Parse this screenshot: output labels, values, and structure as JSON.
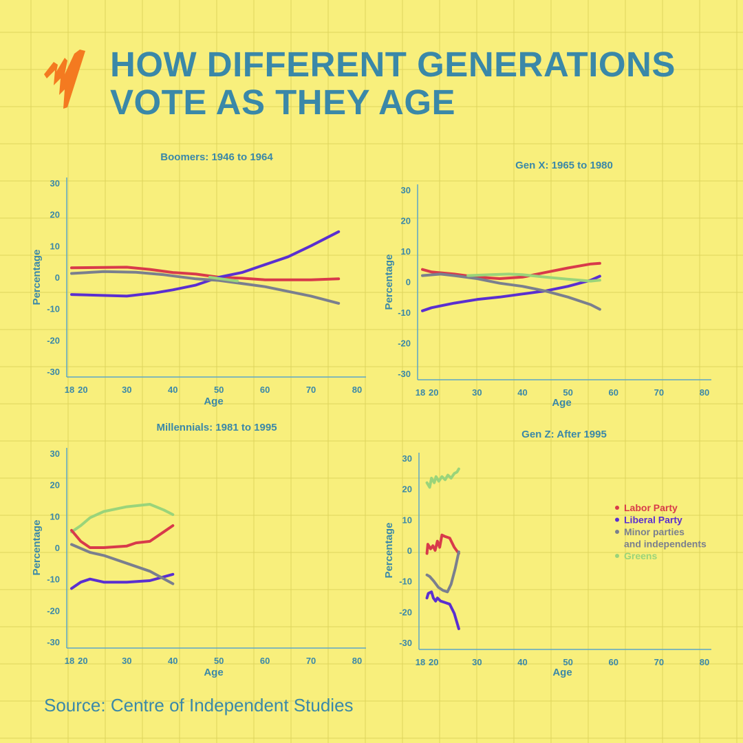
{
  "header": {
    "title_line1": "HOW DIFFERENT GENERATIONS",
    "title_line2": "VOTE AS THEY AGE",
    "logo": "sbs-logo-icon",
    "logo_color": "#f47a20"
  },
  "source": "Source: Centre of Independent Studies",
  "colors": {
    "Labor Party": "#d83a4a",
    "Liberal Party": "#5a2fd0",
    "Minor parties and independents": "#7a7f8e",
    "Greens": "#9ad47a",
    "text": "#3a88a8"
  },
  "legend": {
    "placement": "right of Gen Z chart",
    "items": [
      "Labor Party",
      "Liberal Party",
      "Minor parties",
      "and independents",
      "Greens"
    ]
  },
  "chart_data": [
    {
      "type": "line",
      "title": "Boomers: 1946 to 1964",
      "xlabel": "Age",
      "ylabel": "Percentage",
      "xlim": [
        18,
        80
      ],
      "ylim": [
        -30,
        30
      ],
      "xticks": [
        "18",
        "20",
        "30",
        "40",
        "50",
        "60",
        "70",
        "80"
      ],
      "yticks": [
        "30",
        "20",
        "10",
        "0",
        "-10",
        "-20",
        "-30"
      ],
      "grid": false,
      "series": [
        {
          "name": "Labor Party",
          "x": [
            18,
            30,
            35,
            40,
            45,
            50,
            55,
            60,
            70,
            76
          ],
          "y": [
            3,
            3.2,
            2.5,
            1.5,
            1,
            0,
            -0.3,
            -0.8,
            -0.8,
            -0.5
          ]
        },
        {
          "name": "Liberal Party",
          "x": [
            18,
            30,
            36,
            40,
            45,
            50,
            55,
            60,
            65,
            70,
            76
          ],
          "y": [
            -5.5,
            -6,
            -5,
            -4,
            -2.5,
            0,
            1.5,
            4,
            6.5,
            10,
            14.5
          ]
        },
        {
          "name": "Minor parties and independents",
          "x": [
            18,
            25,
            32,
            38,
            45,
            50,
            55,
            60,
            65,
            70,
            76
          ],
          "y": [
            1.2,
            1.8,
            1.6,
            0.8,
            -0.5,
            -1,
            -2,
            -3,
            -4.5,
            -6,
            -8.3
          ]
        },
        {
          "name": "Greens",
          "x": [
            48,
            52,
            54
          ],
          "y": [
            0,
            -0.8,
            -1.2
          ]
        }
      ]
    },
    {
      "type": "line",
      "title": "Gen X: 1965 to 1980",
      "xlabel": "Age",
      "ylabel": "Percentage",
      "xlim": [
        18,
        80
      ],
      "ylim": [
        -30,
        30
      ],
      "xticks": [
        "18",
        "20",
        "30",
        "40",
        "50",
        "60",
        "70",
        "80"
      ],
      "yticks": [
        "30",
        "20",
        "10",
        "0",
        "-10",
        "-20",
        "-30"
      ],
      "grid": false,
      "series": [
        {
          "name": "Labor Party",
          "x": [
            18,
            20,
            25,
            30,
            35,
            40,
            45,
            50,
            55,
            57
          ],
          "y": [
            4,
            3.2,
            2.5,
            1.5,
            1,
            1.5,
            3,
            4.5,
            5.8,
            6
          ]
        },
        {
          "name": "Liberal Party",
          "x": [
            18,
            20,
            25,
            30,
            35,
            40,
            45,
            50,
            55,
            57
          ],
          "y": [
            -9.5,
            -8.5,
            -7,
            -5.8,
            -5,
            -4,
            -3,
            -1.5,
            0.5,
            1.8
          ]
        },
        {
          "name": "Minor parties and independents",
          "x": [
            18,
            22,
            25,
            30,
            35,
            40,
            45,
            50,
            55,
            57
          ],
          "y": [
            2,
            2.5,
            2,
            1,
            -0.5,
            -1.5,
            -3,
            -5,
            -7.5,
            -9
          ]
        },
        {
          "name": "Greens",
          "x": [
            28,
            33,
            37,
            40,
            45,
            50,
            55,
            57
          ],
          "y": [
            2,
            2.3,
            2.5,
            2.3,
            1.5,
            0.8,
            0.2,
            0.5
          ]
        }
      ]
    },
    {
      "type": "line",
      "title": "Millennials: 1981 to 1995",
      "xlabel": "Age",
      "ylabel": "Percentage",
      "xlim": [
        18,
        80
      ],
      "ylim": [
        -30,
        30
      ],
      "xticks": [
        "18",
        "20",
        "30",
        "40",
        "50",
        "60",
        "70",
        "80"
      ],
      "yticks": [
        "30",
        "20",
        "10",
        "0",
        "-10",
        "-20",
        "-30"
      ],
      "grid": false,
      "series": [
        {
          "name": "Greens",
          "x": [
            18,
            20,
            22,
            25,
            30,
            35,
            38,
            40
          ],
          "y": [
            5,
            7,
            9.5,
            11.5,
            13,
            13.8,
            12,
            10.5
          ]
        },
        {
          "name": "Labor Party",
          "x": [
            18,
            20,
            22,
            25,
            30,
            32,
            35,
            38,
            40
          ],
          "y": [
            5.5,
            2,
            0,
            0,
            0.5,
            1.5,
            2,
            5,
            7
          ]
        },
        {
          "name": "Liberal Party",
          "x": [
            18,
            20,
            22,
            25,
            30,
            35,
            40
          ],
          "y": [
            -13,
            -11,
            -10,
            -11,
            -11,
            -10.5,
            -8.5
          ]
        },
        {
          "name": "Minor parties and independents",
          "x": [
            18,
            22,
            25,
            30,
            35,
            40
          ],
          "y": [
            1,
            -1.5,
            -2.5,
            -5,
            -7.5,
            -11.5
          ]
        }
      ]
    },
    {
      "type": "line",
      "title": "Gen Z: After 1995",
      "xlabel": "Age",
      "ylabel": "Percentage",
      "xlim": [
        18,
        80
      ],
      "ylim": [
        -30,
        30
      ],
      "xticks": [
        "18",
        "20",
        "30",
        "40",
        "50",
        "60",
        "70",
        "80"
      ],
      "yticks": [
        "30",
        "20",
        "10",
        "0",
        "-10",
        "-20",
        "-30"
      ],
      "grid": false,
      "series": [
        {
          "name": "Greens",
          "x": [
            19,
            19.6,
            20,
            20.6,
            21,
            21.6,
            22.3,
            23,
            23.6,
            24.3,
            25,
            25.6,
            26
          ],
          "y": [
            22,
            20.5,
            23.5,
            22,
            24,
            22.5,
            24,
            23,
            24.5,
            23.5,
            25,
            25.5,
            26.5
          ]
        },
        {
          "name": "Labor Party",
          "x": [
            19,
            19.2,
            19.8,
            20.3,
            20.8,
            21.3,
            21.8,
            22.3,
            23,
            24,
            25,
            26
          ],
          "y": [
            -1,
            2,
            0.5,
            1.5,
            0,
            3,
            1,
            5,
            4.5,
            4,
            1,
            -1
          ]
        },
        {
          "name": "Minor parties and independents",
          "x": [
            19,
            19.6,
            20.5,
            21.5,
            22.5,
            23.5,
            24.3,
            25.2,
            26
          ],
          "y": [
            -8,
            -8.5,
            -10,
            -12,
            -13,
            -13.5,
            -11,
            -6,
            -0.5
          ]
        },
        {
          "name": "Liberal Party",
          "x": [
            19,
            19.3,
            20,
            20.4,
            20.9,
            21.3,
            22,
            23,
            24,
            25,
            26
          ],
          "y": [
            -15.5,
            -14,
            -13.5,
            -15.5,
            -16.5,
            -15.5,
            -16.5,
            -17,
            -17.5,
            -20.5,
            -25.5
          ]
        }
      ]
    }
  ]
}
